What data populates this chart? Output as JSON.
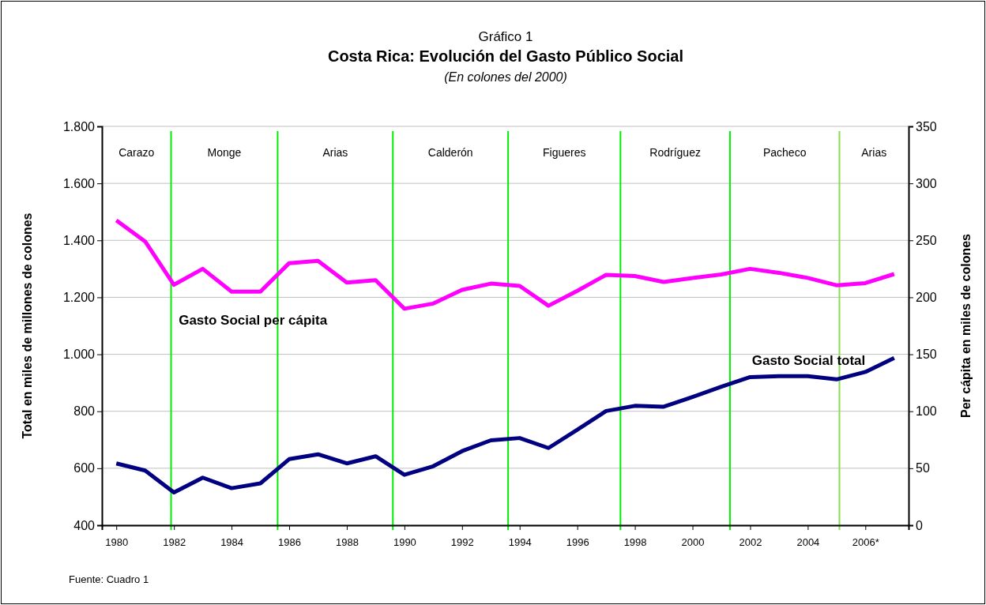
{
  "chart_data": {
    "type": "line",
    "title": "Costa Rica: Evolución del Gasto Público Social",
    "subtitle": "(En colones del 2000)",
    "ylabel": "Total en miles de millones de colones",
    "y2label": "Per cápita en miles de colones",
    "x": [
      1980,
      1981,
      1982,
      1983,
      1984,
      1985,
      1986,
      1987,
      1988,
      1989,
      1990,
      1991,
      1992,
      1993,
      1994,
      1995,
      1996,
      1997,
      1998,
      1999,
      2000,
      2001,
      2002,
      2003,
      2004,
      2005,
      2006,
      2007
    ],
    "series": [
      {
        "name": "Gasto Social total",
        "color": "#000080",
        "values": [
          617,
          592,
          515,
          567,
          530,
          547,
          632,
          649,
          617,
          642,
          577,
          607,
          660,
          698,
          706,
          671,
          735,
          801,
          819,
          816,
          850,
          886,
          920,
          923,
          923,
          912,
          938,
          987
        ]
      },
      {
        "name": "Gasto Social per cápita",
        "color": "#ff00ff",
        "axis": "y2",
        "values": [
          267.5,
          249,
          211,
          225,
          205,
          205,
          230,
          232,
          213,
          215,
          190,
          194.5,
          206.5,
          212,
          210,
          192.6,
          205.7,
          219.7,
          218.7,
          213.5,
          217,
          220,
          225,
          221.5,
          217,
          210.6,
          212.5,
          220.4
        ]
      }
    ],
    "xlim": [
      1979.5,
      2007.5
    ],
    "xticks": [
      {
        "value": 1980,
        "label": "1980"
      },
      {
        "value": 1982,
        "label": "1982"
      },
      {
        "value": 1984,
        "label": "1984"
      },
      {
        "value": 1986,
        "label": "1986"
      },
      {
        "value": 1988,
        "label": "1988"
      },
      {
        "value": 1990,
        "label": "1990"
      },
      {
        "value": 1992,
        "label": "1992"
      },
      {
        "value": 1994,
        "label": "1994"
      },
      {
        "value": 1996,
        "label": "1996"
      },
      {
        "value": 1998,
        "label": "1998"
      },
      {
        "value": 2000,
        "label": "2000"
      },
      {
        "value": 2002,
        "label": "2002"
      },
      {
        "value": 2004,
        "label": "2004"
      },
      {
        "value": 2006,
        "label": "2006*"
      }
    ],
    "ylim": [
      400,
      1800
    ],
    "yticks": [
      400,
      600,
      800,
      {
        "value": 1000,
        "label": "1.000"
      },
      {
        "value": 1200,
        "label": "1.200"
      },
      {
        "value": 1400,
        "label": "1.400"
      },
      {
        "value": 1600,
        "label": "1.600"
      },
      {
        "value": 1800,
        "label": "1.800"
      }
    ],
    "y2lim": [
      0,
      350
    ],
    "y2ticks": [
      0,
      50,
      100,
      150,
      200,
      250,
      300,
      350
    ],
    "grid": "y",
    "legend": false,
    "marker": "none",
    "line_style": "solid",
    "ref_lines": [
      {
        "axis": "x",
        "value": 1981.9,
        "color": "#00ee00"
      },
      {
        "axis": "x",
        "value": 1985.6,
        "color": "#00ee00"
      },
      {
        "axis": "x",
        "value": 1989.6,
        "color": "#00ee00"
      },
      {
        "axis": "x",
        "value": 1993.6,
        "color": "#00ee00"
      },
      {
        "axis": "x",
        "value": 1997.5,
        "color": "#00ee00"
      },
      {
        "axis": "x",
        "value": 2001.3,
        "color": "#00ee00"
      },
      {
        "axis": "x",
        "value": 2005.1,
        "color": "#88dd55"
      }
    ],
    "annotations": [
      "Gráfico 1",
      "Fuente: Cuadro 1",
      "Carazo",
      "Monge",
      "Arias",
      "Calderón",
      "Figueres",
      "Rodríguez",
      "Pacheco",
      "Arias"
    ]
  }
}
